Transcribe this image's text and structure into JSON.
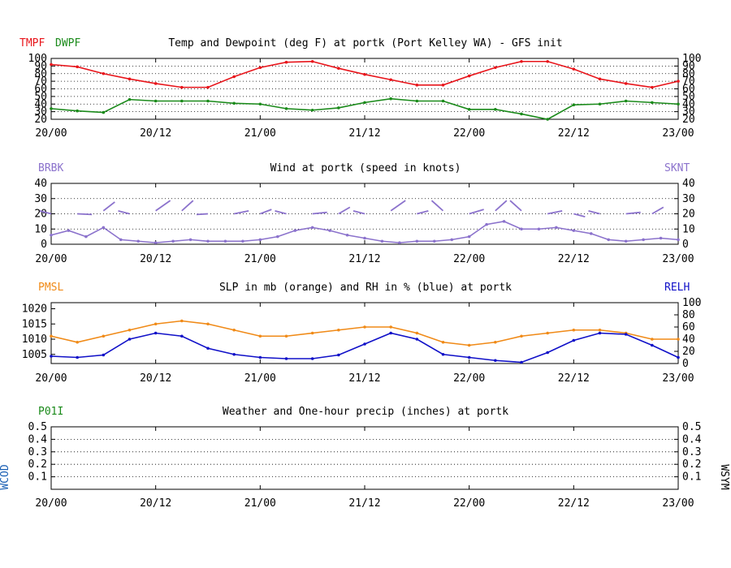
{
  "x_labels": [
    "20/00",
    "20/12",
    "21/00",
    "21/12",
    "22/00",
    "22/12",
    "23/00"
  ],
  "panels": {
    "temp": {
      "title": "Temp and Dewpoint (deg F) at portk (Port Kelley WA) - GFS init",
      "left_label_1": "TMPF",
      "left_label_2": "DWPF",
      "colors": {
        "tmpf": "#e8151b",
        "dwpf": "#1a8a1a"
      },
      "yticks": [
        "100",
        "90",
        "80",
        "70",
        "60",
        "50",
        "40",
        "30",
        "20"
      ]
    },
    "wind": {
      "title": "Wind at  portk (speed in knots)",
      "left_label": "BRBK",
      "right_label": "SKNT",
      "color": "#8b72cc",
      "yticks": [
        "40",
        "30",
        "20",
        "10",
        "0"
      ]
    },
    "slp": {
      "title": "SLP in mb (orange) and RH in % (blue) at  portk",
      "left_label": "PMSL",
      "right_label": "RELH",
      "colors": {
        "pmsl": "#f08a17",
        "relh": "#1010c8"
      },
      "yticks_left": [
        "1020",
        "1015",
        "1010",
        "1005"
      ],
      "yticks_right": [
        "100",
        "80",
        "60",
        "40",
        "20",
        "0"
      ]
    },
    "precip": {
      "title": "Weather and One-hour precip (inches) at  portk",
      "left_label": "P01I",
      "left_vertical": "WCOD",
      "right_vertical": "WSYM",
      "colors": {
        "p01i": "#1a8a1a",
        "wcod": "#1a5fb4"
      },
      "yticks": [
        "0.5",
        "0.4",
        "0.3",
        "0.2",
        "0.1"
      ]
    }
  },
  "chart_data": [
    {
      "type": "line",
      "title": "Temp and Dewpoint (deg F) at portk (Port Kelley WA) - GFS init",
      "x_hours": [
        0,
        3,
        6,
        9,
        12,
        15,
        18,
        21,
        24,
        27,
        30,
        33,
        36,
        39,
        42,
        45,
        48,
        51,
        54,
        57,
        60,
        63,
        66,
        69,
        72
      ],
      "ylim": [
        20,
        100
      ],
      "series": [
        {
          "name": "TMPF",
          "values": [
            92,
            89,
            80,
            73,
            67,
            62,
            62,
            76,
            88,
            95,
            96,
            87,
            79,
            72,
            65,
            65,
            77,
            88,
            96,
            96,
            86,
            73,
            67,
            62,
            70
          ]
        },
        {
          "name": "DWPF",
          "values": [
            34,
            31,
            29,
            46,
            44,
            44,
            44,
            41,
            40,
            34,
            32,
            35,
            42,
            47,
            44,
            44,
            33,
            33,
            27,
            20,
            39,
            40,
            44,
            42,
            40
          ]
        }
      ]
    },
    {
      "type": "scatter",
      "title": "Wind at  portk (speed in knots)",
      "x_hours": [
        0,
        2,
        4,
        6,
        8,
        10,
        12,
        14,
        16,
        18,
        20,
        22,
        24,
        26,
        28,
        30,
        32,
        34,
        36,
        38,
        40,
        42,
        44,
        46,
        48,
        50,
        52,
        54,
        56,
        58,
        60,
        62,
        64,
        66,
        68,
        70,
        72
      ],
      "ylim": [
        0,
        40
      ],
      "series": [
        {
          "name": "SKNT",
          "values": [
            6,
            9,
            5,
            11,
            3,
            2,
            1,
            2,
            3,
            2,
            2,
            2,
            3,
            5,
            9,
            11,
            9,
            6,
            4,
            2,
            1,
            2,
            2,
            3,
            5,
            13,
            15,
            10,
            10,
            11,
            9,
            7,
            3,
            2,
            3,
            4,
            3
          ]
        }
      ]
    },
    {
      "type": "line",
      "title": "SLP in mb (orange) and RH in % (blue) at  portk",
      "x_hours": [
        0,
        3,
        6,
        9,
        12,
        15,
        18,
        21,
        24,
        27,
        30,
        33,
        36,
        39,
        42,
        45,
        48,
        51,
        54,
        57,
        60,
        63,
        66,
        69,
        72
      ],
      "series": [
        {
          "name": "PMSL",
          "axis": "left",
          "ylim": [
            1002,
            1022
          ],
          "values": [
            1011,
            1009,
            1011,
            1013,
            1015,
            1016,
            1015,
            1013,
            1011,
            1011,
            1012,
            1013,
            1014,
            1014,
            1012,
            1009,
            1008,
            1009,
            1011,
            1012,
            1013,
            1013,
            1012,
            1010,
            1010
          ]
        },
        {
          "name": "RELH",
          "axis": "right",
          "ylim": [
            0,
            100
          ],
          "values": [
            12,
            10,
            14,
            40,
            50,
            45,
            25,
            15,
            10,
            8,
            8,
            14,
            32,
            50,
            40,
            15,
            10,
            5,
            2,
            18,
            38,
            50,
            48,
            30,
            10
          ]
        }
      ]
    },
    {
      "type": "line",
      "title": "Weather and One-hour precip (inches) at  portk",
      "ylim": [
        0,
        0.5
      ],
      "series": [
        {
          "name": "P01I",
          "values": []
        }
      ]
    }
  ]
}
